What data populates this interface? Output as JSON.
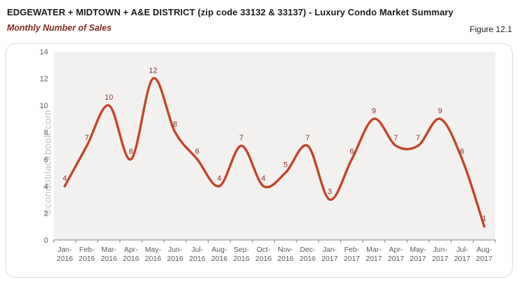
{
  "header": {
    "title": "EDGEWATER + MIDTOWN + A&E DISTRICT (zip code 33132 & 33137) - Luxury Condo Market Summary",
    "subtitle": "Monthly Number of Sales",
    "figure_label": "Figure 12.1"
  },
  "watermark": "©condoblackbook.com",
  "chart_data": {
    "type": "line",
    "title": "Monthly Number of Sales",
    "categories": [
      "Jan-2016",
      "Feb-2016",
      "Mar-2016",
      "Apr-2016",
      "May-2016",
      "Jun-2016",
      "Jul-2016",
      "Aug-2016",
      "Sep-2016",
      "Oct-2016",
      "Nov-2016",
      "Dec-2016",
      "Jan-2017",
      "Feb-2017",
      "Mar-2017",
      "Apr-2017",
      "May-2017",
      "Jun-2017",
      "Jul-2017",
      "Aug-2017"
    ],
    "values": [
      4,
      7,
      10,
      6,
      12,
      8,
      6,
      4,
      7,
      4,
      5,
      7,
      3,
      6,
      9,
      7,
      7,
      9,
      6,
      1
    ],
    "xlabel": "",
    "ylabel": "",
    "ylim": [
      0,
      14
    ],
    "ytick_step": 2,
    "grid": false,
    "legend": "none",
    "smooth": true,
    "data_labels": true,
    "colors": {
      "line": "#c2452a",
      "data_label": "#84352c",
      "axis_text": "#595959",
      "axis_line": "#808080",
      "plot_bg": "#f2f1ef",
      "watermark": "#c4c2c0"
    }
  }
}
